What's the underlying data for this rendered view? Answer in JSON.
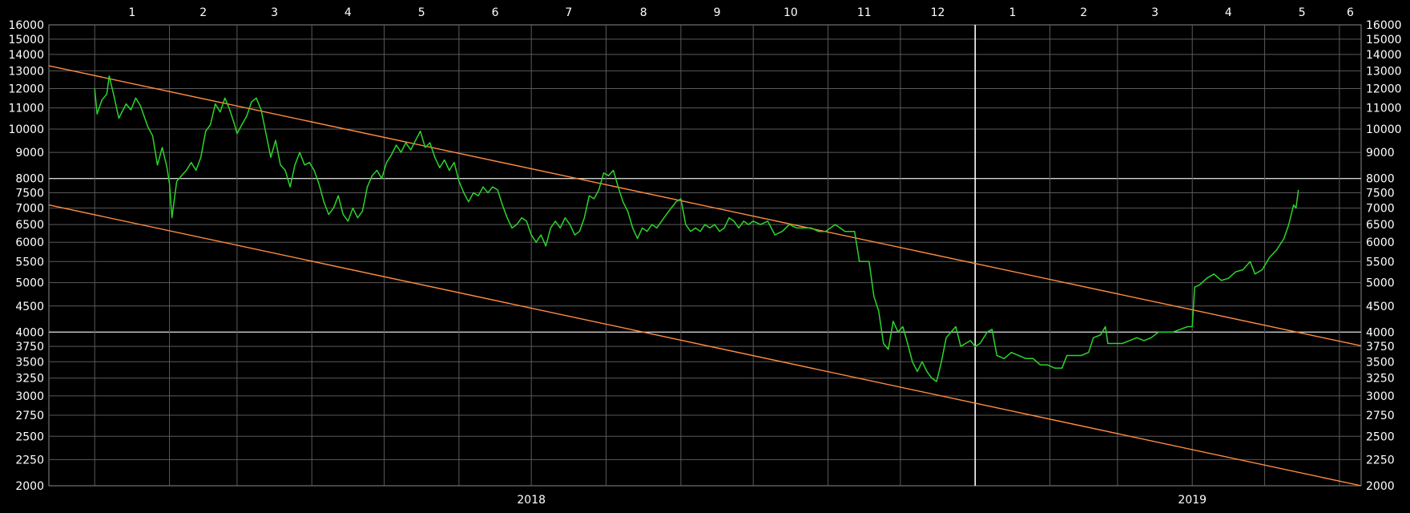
{
  "chart_data": {
    "type": "line",
    "title": "",
    "xlabel": "",
    "ylabel": "",
    "y_scale": "log",
    "ylim": [
      2000,
      16000
    ],
    "xlim": [
      "2017-12-13",
      "2019-06-10"
    ],
    "grid": true,
    "background": "#000000",
    "colors": {
      "price": "#2bd52b",
      "channel": "#ff8c42",
      "grid": "#5a5a5a",
      "key_grid": "#d0d0d0",
      "year_divider": "#ffffff",
      "text": "#ffffff"
    },
    "y_ticks": [
      "16000",
      "15000",
      "14000",
      "13000",
      "12000",
      "11000",
      "10000",
      "9000",
      "8000",
      "7500",
      "7000",
      "6500",
      "6000",
      "5500",
      "5000",
      "4500",
      "4000",
      "3750",
      "3500",
      "3250",
      "3000",
      "2750",
      "2500",
      "2250",
      "2000"
    ],
    "y_ticks_emphasis": [
      "8000",
      "4000"
    ],
    "month_ticks": [
      {
        "label": "1",
        "date": "2018-01-01",
        "grid": "2018-01-01"
      },
      {
        "label": "2",
        "date": "2018-02-01",
        "grid": "2018-02-01"
      },
      {
        "label": "3",
        "date": "2018-03-01",
        "grid": "2018-03-01"
      },
      {
        "label": "4",
        "date": "2018-04-01",
        "grid": "2018-04-01"
      },
      {
        "label": "5",
        "date": "2018-05-01",
        "grid": "2018-05-01"
      },
      {
        "label": "6",
        "date": "2018-06-01",
        "grid": "2018-06-01"
      },
      {
        "label": "7",
        "date": "2018-07-01",
        "grid": "2018-07-01"
      },
      {
        "label": "8",
        "date": "2018-08-01",
        "grid": "2018-08-01"
      },
      {
        "label": "9",
        "date": "2018-09-01",
        "grid": "2018-09-01"
      },
      {
        "label": "10",
        "date": "2018-10-01",
        "grid": "2018-10-01"
      },
      {
        "label": "11",
        "date": "2018-11-01",
        "grid": "2018-11-01"
      },
      {
        "label": "12",
        "date": "2018-12-01",
        "grid": "2018-12-01"
      },
      {
        "label": "1",
        "date": "2019-01-01",
        "grid": "2019-01-01"
      },
      {
        "label": "2",
        "date": "2019-02-01",
        "grid": "2019-02-01"
      },
      {
        "label": "3",
        "date": "2019-03-01",
        "grid": "2019-03-01"
      },
      {
        "label": "4",
        "date": "2019-04-01",
        "grid": "2019-04-01"
      },
      {
        "label": "5",
        "date": "2019-05-01",
        "grid": "2019-05-01"
      },
      {
        "label": "6",
        "date": "2019-06-01",
        "grid": "2019-06-01"
      }
    ],
    "year_labels": [
      {
        "label": "2018",
        "date": "2018-07-01"
      },
      {
        "label": "2019",
        "date": "2019-04-01"
      }
    ],
    "year_divider": "2019-01-01",
    "trendlines": [
      {
        "points": [
          [
            "2017-12-13",
            13300
          ],
          [
            "2019-06-10",
            3760
          ]
        ]
      },
      {
        "points": [
          [
            "2017-12-13",
            7100
          ],
          [
            "2019-06-10",
            2000
          ]
        ]
      }
    ],
    "series": [
      {
        "points": [
          [
            "2018-01-01",
            12000
          ],
          [
            "2018-01-02",
            10700
          ],
          [
            "2018-01-04",
            11400
          ],
          [
            "2018-01-06",
            11700
          ],
          [
            "2018-01-07",
            12700
          ],
          [
            "2018-01-09",
            11600
          ],
          [
            "2018-01-11",
            10500
          ],
          [
            "2018-01-14",
            11200
          ],
          [
            "2018-01-16",
            10900
          ],
          [
            "2018-01-18",
            11500
          ],
          [
            "2018-01-20",
            11100
          ],
          [
            "2018-01-23",
            10100
          ],
          [
            "2018-01-25",
            9700
          ],
          [
            "2018-01-27",
            8500
          ],
          [
            "2018-01-29",
            9200
          ],
          [
            "2018-01-31",
            8400
          ],
          [
            "2018-02-01",
            7800
          ],
          [
            "2018-02-02",
            6700
          ],
          [
            "2018-02-04",
            7900
          ],
          [
            "2018-02-06",
            8100
          ],
          [
            "2018-02-08",
            8300
          ],
          [
            "2018-02-10",
            8600
          ],
          [
            "2018-02-12",
            8300
          ],
          [
            "2018-02-14",
            8800
          ],
          [
            "2018-02-16",
            9900
          ],
          [
            "2018-02-18",
            10200
          ],
          [
            "2018-02-20",
            11200
          ],
          [
            "2018-02-22",
            10800
          ],
          [
            "2018-02-24",
            11500
          ],
          [
            "2018-02-26",
            10900
          ],
          [
            "2018-02-28",
            10200
          ],
          [
            "2018-03-01",
            9800
          ],
          [
            "2018-03-03",
            10200
          ],
          [
            "2018-03-05",
            10600
          ],
          [
            "2018-03-07",
            11300
          ],
          [
            "2018-03-09",
            11500
          ],
          [
            "2018-03-11",
            10900
          ],
          [
            "2018-03-13",
            9800
          ],
          [
            "2018-03-15",
            8800
          ],
          [
            "2018-03-17",
            9500
          ],
          [
            "2018-03-19",
            8500
          ],
          [
            "2018-03-21",
            8300
          ],
          [
            "2018-03-23",
            7700
          ],
          [
            "2018-03-25",
            8500
          ],
          [
            "2018-03-27",
            9000
          ],
          [
            "2018-03-29",
            8500
          ],
          [
            "2018-03-31",
            8600
          ],
          [
            "2018-04-02",
            8300
          ],
          [
            "2018-04-04",
            7800
          ],
          [
            "2018-04-06",
            7200
          ],
          [
            "2018-04-08",
            6800
          ],
          [
            "2018-04-10",
            7000
          ],
          [
            "2018-04-12",
            7400
          ],
          [
            "2018-04-14",
            6800
          ],
          [
            "2018-04-16",
            6600
          ],
          [
            "2018-04-18",
            7000
          ],
          [
            "2018-04-20",
            6700
          ],
          [
            "2018-04-22",
            6900
          ],
          [
            "2018-04-24",
            7700
          ],
          [
            "2018-04-26",
            8100
          ],
          [
            "2018-04-28",
            8300
          ],
          [
            "2018-04-30",
            8000
          ],
          [
            "2018-05-02",
            8600
          ],
          [
            "2018-05-04",
            8900
          ],
          [
            "2018-05-06",
            9300
          ],
          [
            "2018-05-08",
            9000
          ],
          [
            "2018-05-10",
            9400
          ],
          [
            "2018-05-12",
            9100
          ],
          [
            "2018-05-14",
            9500
          ],
          [
            "2018-05-16",
            9900
          ],
          [
            "2018-05-18",
            9200
          ],
          [
            "2018-05-20",
            9400
          ],
          [
            "2018-05-22",
            8800
          ],
          [
            "2018-05-24",
            8400
          ],
          [
            "2018-05-26",
            8700
          ],
          [
            "2018-05-28",
            8300
          ],
          [
            "2018-05-30",
            8600
          ],
          [
            "2018-06-01",
            7900
          ],
          [
            "2018-06-03",
            7500
          ],
          [
            "2018-06-05",
            7200
          ],
          [
            "2018-06-07",
            7500
          ],
          [
            "2018-06-09",
            7400
          ],
          [
            "2018-06-11",
            7700
          ],
          [
            "2018-06-13",
            7500
          ],
          [
            "2018-06-15",
            7700
          ],
          [
            "2018-06-17",
            7600
          ],
          [
            "2018-06-19",
            7100
          ],
          [
            "2018-06-21",
            6700
          ],
          [
            "2018-06-23",
            6400
          ],
          [
            "2018-06-25",
            6500
          ],
          [
            "2018-06-27",
            6700
          ],
          [
            "2018-06-29",
            6600
          ],
          [
            "2018-07-01",
            6200
          ],
          [
            "2018-07-03",
            6000
          ],
          [
            "2018-07-05",
            6200
          ],
          [
            "2018-07-07",
            5900
          ],
          [
            "2018-07-09",
            6400
          ],
          [
            "2018-07-11",
            6600
          ],
          [
            "2018-07-13",
            6400
          ],
          [
            "2018-07-15",
            6700
          ],
          [
            "2018-07-17",
            6500
          ],
          [
            "2018-07-19",
            6200
          ],
          [
            "2018-07-21",
            6300
          ],
          [
            "2018-07-23",
            6700
          ],
          [
            "2018-07-25",
            7400
          ],
          [
            "2018-07-27",
            7300
          ],
          [
            "2018-07-29",
            7600
          ],
          [
            "2018-07-31",
            8200
          ],
          [
            "2018-08-02",
            8100
          ],
          [
            "2018-08-04",
            8300
          ],
          [
            "2018-08-06",
            7700
          ],
          [
            "2018-08-08",
            7200
          ],
          [
            "2018-08-10",
            6900
          ],
          [
            "2018-08-12",
            6400
          ],
          [
            "2018-08-14",
            6100
          ],
          [
            "2018-08-16",
            6400
          ],
          [
            "2018-08-18",
            6300
          ],
          [
            "2018-08-20",
            6500
          ],
          [
            "2018-08-22",
            6400
          ],
          [
            "2018-08-24",
            6600
          ],
          [
            "2018-08-26",
            6800
          ],
          [
            "2018-08-28",
            7000
          ],
          [
            "2018-08-30",
            7200
          ],
          [
            "2018-09-01",
            7300
          ],
          [
            "2018-09-03",
            6500
          ],
          [
            "2018-09-05",
            6300
          ],
          [
            "2018-09-07",
            6400
          ],
          [
            "2018-09-09",
            6300
          ],
          [
            "2018-09-11",
            6500
          ],
          [
            "2018-09-13",
            6400
          ],
          [
            "2018-09-15",
            6500
          ],
          [
            "2018-09-17",
            6300
          ],
          [
            "2018-09-19",
            6400
          ],
          [
            "2018-09-21",
            6700
          ],
          [
            "2018-09-23",
            6600
          ],
          [
            "2018-09-25",
            6400
          ],
          [
            "2018-09-27",
            6600
          ],
          [
            "2018-09-29",
            6500
          ],
          [
            "2018-10-01",
            6600
          ],
          [
            "2018-10-04",
            6500
          ],
          [
            "2018-10-07",
            6600
          ],
          [
            "2018-10-10",
            6200
          ],
          [
            "2018-10-13",
            6300
          ],
          [
            "2018-10-16",
            6500
          ],
          [
            "2018-10-19",
            6400
          ],
          [
            "2018-10-22",
            6400
          ],
          [
            "2018-10-25",
            6400
          ],
          [
            "2018-10-28",
            6300
          ],
          [
            "2018-10-31",
            6300
          ],
          [
            "2018-11-02",
            6400
          ],
          [
            "2018-11-04",
            6500
          ],
          [
            "2018-11-06",
            6400
          ],
          [
            "2018-11-08",
            6300
          ],
          [
            "2018-11-10",
            6300
          ],
          [
            "2018-11-12",
            6300
          ],
          [
            "2018-11-14",
            5500
          ],
          [
            "2018-11-16",
            5500
          ],
          [
            "2018-11-18",
            5500
          ],
          [
            "2018-11-20",
            4700
          ],
          [
            "2018-11-22",
            4400
          ],
          [
            "2018-11-24",
            3800
          ],
          [
            "2018-11-26",
            3700
          ],
          [
            "2018-11-28",
            4200
          ],
          [
            "2018-11-30",
            4000
          ],
          [
            "2018-12-02",
            4100
          ],
          [
            "2018-12-04",
            3800
          ],
          [
            "2018-12-06",
            3500
          ],
          [
            "2018-12-08",
            3350
          ],
          [
            "2018-12-10",
            3500
          ],
          [
            "2018-12-12",
            3350
          ],
          [
            "2018-12-14",
            3250
          ],
          [
            "2018-12-16",
            3200
          ],
          [
            "2018-12-18",
            3500
          ],
          [
            "2018-12-20",
            3900
          ],
          [
            "2018-12-22",
            4000
          ],
          [
            "2018-12-24",
            4100
          ],
          [
            "2018-12-26",
            3750
          ],
          [
            "2018-12-28",
            3800
          ],
          [
            "2018-12-30",
            3850
          ],
          [
            "2019-01-01",
            3750
          ],
          [
            "2019-01-03",
            3800
          ],
          [
            "2019-01-06",
            4000
          ],
          [
            "2019-01-08",
            4050
          ],
          [
            "2019-01-10",
            3600
          ],
          [
            "2019-01-13",
            3550
          ],
          [
            "2019-01-16",
            3650
          ],
          [
            "2019-01-19",
            3600
          ],
          [
            "2019-01-22",
            3550
          ],
          [
            "2019-01-25",
            3550
          ],
          [
            "2019-01-28",
            3450
          ],
          [
            "2019-01-31",
            3450
          ],
          [
            "2019-02-03",
            3400
          ],
          [
            "2019-02-06",
            3400
          ],
          [
            "2019-02-08",
            3600
          ],
          [
            "2019-02-11",
            3600
          ],
          [
            "2019-02-14",
            3600
          ],
          [
            "2019-02-17",
            3650
          ],
          [
            "2019-02-19",
            3900
          ],
          [
            "2019-02-22",
            3950
          ],
          [
            "2019-02-24",
            4100
          ],
          [
            "2019-02-25",
            3800
          ],
          [
            "2019-02-28",
            3800
          ],
          [
            "2019-03-03",
            3800
          ],
          [
            "2019-03-06",
            3850
          ],
          [
            "2019-03-09",
            3900
          ],
          [
            "2019-03-12",
            3850
          ],
          [
            "2019-03-15",
            3900
          ],
          [
            "2019-03-18",
            4000
          ],
          [
            "2019-03-21",
            4000
          ],
          [
            "2019-03-24",
            4000
          ],
          [
            "2019-03-27",
            4050
          ],
          [
            "2019-03-30",
            4100
          ],
          [
            "2019-04-01",
            4100
          ],
          [
            "2019-04-02",
            4900
          ],
          [
            "2019-04-04",
            4950
          ],
          [
            "2019-04-07",
            5100
          ],
          [
            "2019-04-10",
            5200
          ],
          [
            "2019-04-13",
            5050
          ],
          [
            "2019-04-16",
            5100
          ],
          [
            "2019-04-19",
            5250
          ],
          [
            "2019-04-22",
            5300
          ],
          [
            "2019-04-25",
            5500
          ],
          [
            "2019-04-27",
            5200
          ],
          [
            "2019-04-30",
            5300
          ],
          [
            "2019-05-03",
            5600
          ],
          [
            "2019-05-06",
            5800
          ],
          [
            "2019-05-09",
            6100
          ],
          [
            "2019-05-11",
            6500
          ],
          [
            "2019-05-13",
            7100
          ],
          [
            "2019-05-14",
            7000
          ],
          [
            "2019-05-15",
            7600
          ]
        ]
      }
    ]
  }
}
